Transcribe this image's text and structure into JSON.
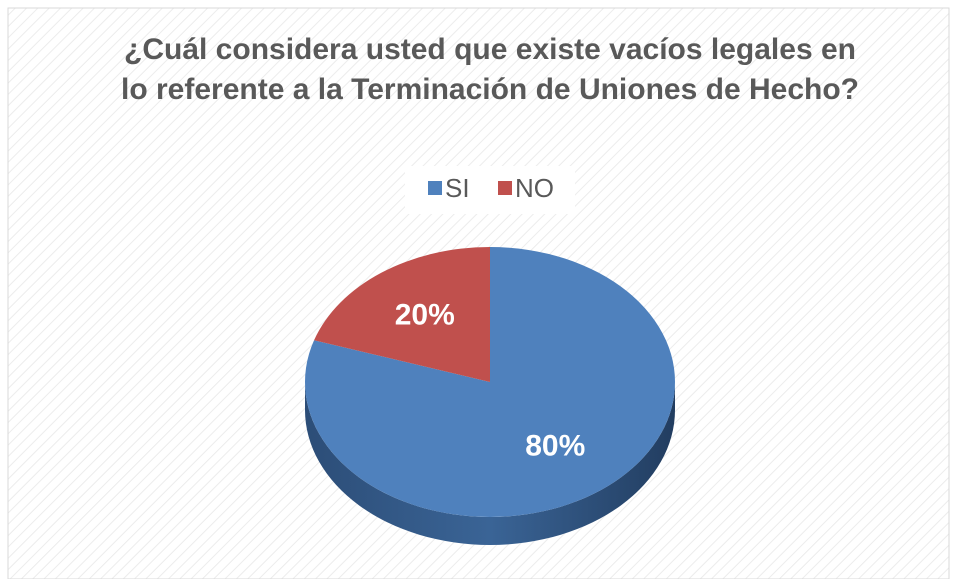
{
  "chart_data": {
    "type": "pie",
    "title": "¿Cuál considera usted que existe vacíos legales en lo referente a la Terminación de Uniones de Hecho?",
    "categories": [
      "SI",
      "NO"
    ],
    "values": [
      80,
      20
    ],
    "value_labels": [
      "80%",
      "20%"
    ],
    "colors": [
      "#4f81bd",
      "#c0504d"
    ],
    "legend": "top"
  }
}
